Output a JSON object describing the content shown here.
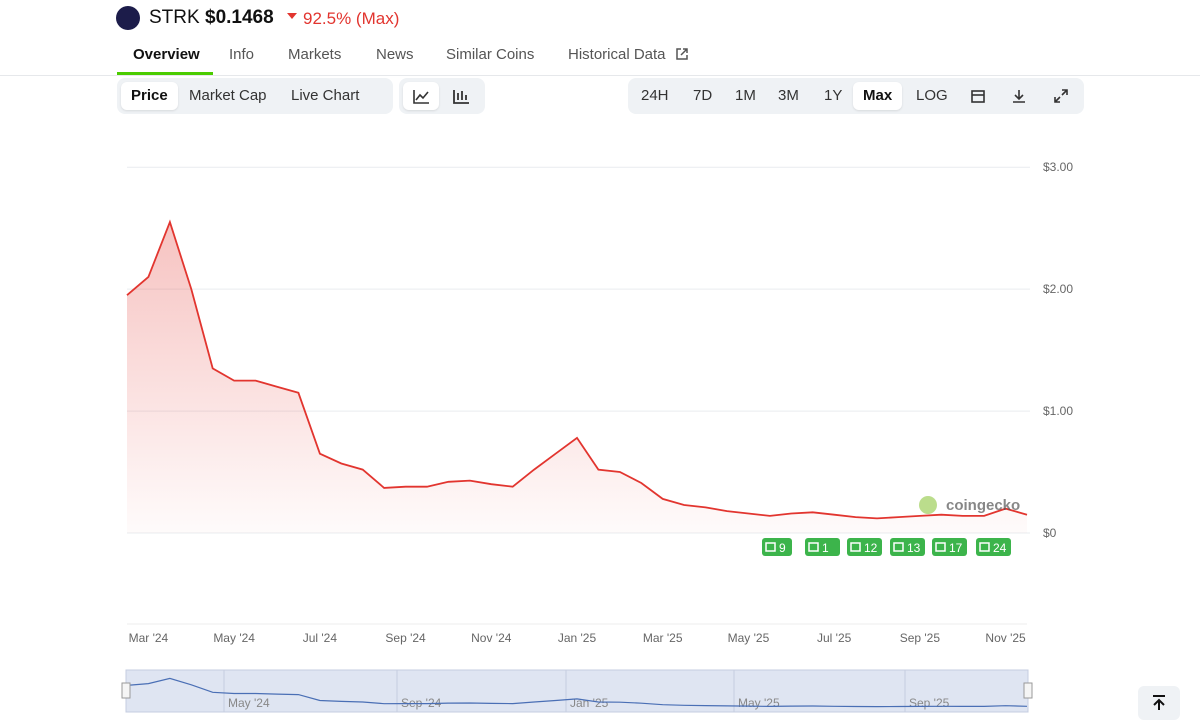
{
  "header": {
    "symbol": "STRK",
    "price": "$0.1468",
    "change": "92.5% (Max)"
  },
  "tabs": [
    "Overview",
    "Info",
    "Markets",
    "News",
    "Similar Coins",
    "Historical Data"
  ],
  "toolbar": {
    "left": [
      "Price",
      "Market Cap",
      "Live Chart"
    ],
    "ranges": [
      "24H",
      "7D",
      "1M",
      "3M",
      "1Y",
      "Max",
      "LOG"
    ]
  },
  "chart_data": {
    "type": "line",
    "color": "#e2352f",
    "categories": [
      null,
      "Mar '24",
      null,
      null,
      null,
      "May '24",
      null,
      null,
      null,
      "Jul '24",
      null,
      null,
      null,
      "Sep '24",
      null,
      null,
      null,
      "Nov '24",
      null,
      null,
      null,
      "Jan '25",
      null,
      null,
      null,
      "Mar '25",
      null,
      null,
      null,
      "May '25",
      null,
      null,
      null,
      "Jul '25",
      null,
      null,
      null,
      "Sep '25",
      null,
      null,
      null,
      "Nov '25",
      null
    ],
    "values": [
      1.95,
      2.1,
      2.55,
      2.0,
      1.35,
      1.25,
      1.25,
      1.2,
      1.15,
      0.65,
      0.57,
      0.52,
      0.37,
      0.38,
      0.38,
      0.42,
      0.43,
      0.4,
      0.38,
      0.52,
      0.65,
      0.78,
      0.52,
      0.5,
      0.41,
      0.28,
      0.23,
      0.21,
      0.18,
      0.16,
      0.14,
      0.16,
      0.17,
      0.15,
      0.13,
      0.12,
      0.13,
      0.14,
      0.15,
      0.14,
      0.14,
      0.2,
      0.15
    ],
    "ylim": [
      0,
      3.1
    ],
    "yticks": [
      {
        "value": 0,
        "label": "$0"
      },
      {
        "value": 1,
        "label": "$1.00"
      },
      {
        "value": 2,
        "label": "$2.00"
      },
      {
        "value": 3,
        "label": "$3.00"
      }
    ],
    "grid": true,
    "watermark": "coingecko",
    "news_badges": [
      "9",
      "1",
      "12",
      "13",
      "17",
      "24"
    ]
  },
  "navigator": {
    "labels": [
      "May '24",
      "Sep '24",
      "Jan '25",
      "May '25",
      "Sep '25"
    ]
  }
}
